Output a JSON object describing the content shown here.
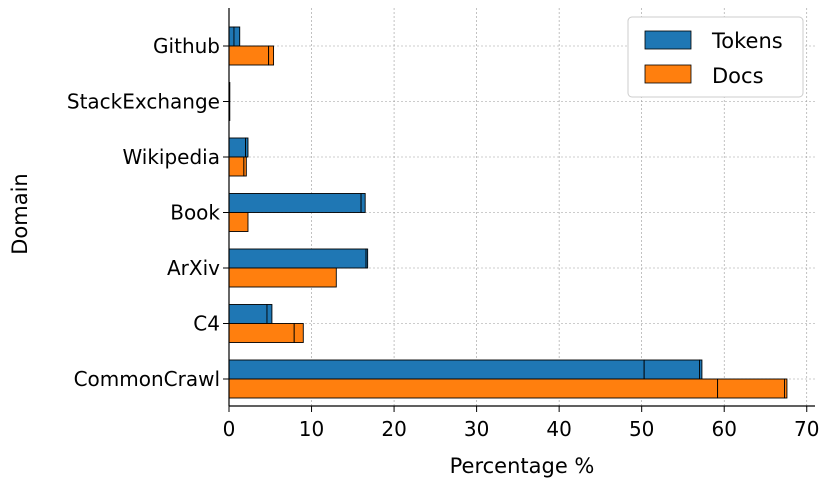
{
  "chart_data": {
    "type": "bar",
    "orientation": "horizontal",
    "stacked_segments": true,
    "categories": [
      "Github",
      "StackExchange",
      "Wikipedia",
      "Book",
      "ArXiv",
      "C4",
      "CommonCrawl"
    ],
    "series": [
      {
        "name": "Tokens",
        "color": "#1f77b4",
        "values": [
          1.3,
          0.1,
          2.3,
          16.5,
          16.8,
          5.2,
          57.3
        ],
        "segments": [
          [
            0.6,
            0.7
          ],
          [
            0.1
          ],
          [
            2.0,
            0.3
          ],
          [
            16.0,
            0.5
          ],
          [
            16.6,
            0.2
          ],
          [
            4.6,
            0.6
          ],
          [
            50.3,
            6.7,
            0.3
          ]
        ]
      },
      {
        "name": "Docs",
        "color": "#ff7f0e",
        "values": [
          5.4,
          0.05,
          2.1,
          2.3,
          13.0,
          9.0,
          67.6
        ],
        "segments": [
          [
            4.8,
            0.6
          ],
          [
            0.05
          ],
          [
            1.8,
            0.3
          ],
          [
            2.3
          ],
          [
            13.0
          ],
          [
            7.9,
            1.1
          ],
          [
            59.2,
            8.1,
            0.3
          ]
        ]
      }
    ],
    "xlabel": "Percentage %",
    "ylabel": "Domain",
    "xlim": [
      0,
      71
    ],
    "xticks": [
      0,
      10,
      20,
      30,
      40,
      50,
      60,
      70
    ],
    "grid": true,
    "legend": "top-right"
  }
}
